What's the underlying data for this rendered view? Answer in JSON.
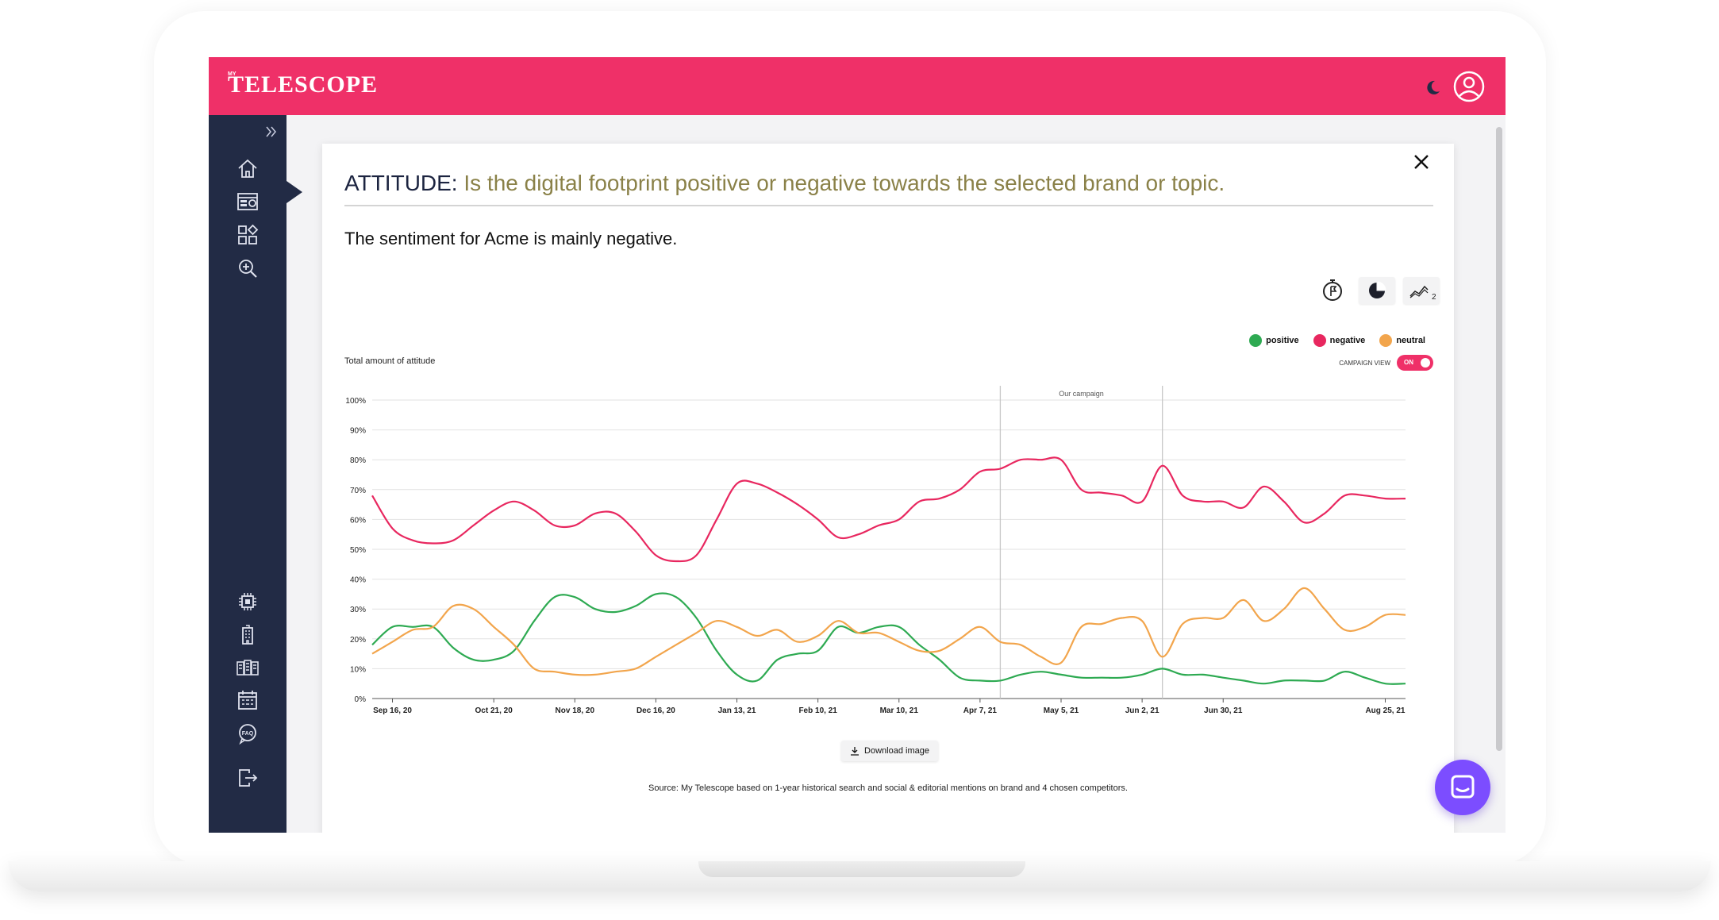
{
  "app": {
    "logo_small": "MY",
    "logo": "TELESCOPE",
    "brand_color": "#ef3068",
    "sidebar_color": "#222b45"
  },
  "sidebar": {
    "top_items": [
      "home-icon",
      "dashboard-icon",
      "widgets-icon",
      "zoom-in-icon"
    ],
    "bottom_items": [
      "chip-icon",
      "building-icon",
      "buildings-icon",
      "calendar-icon",
      "faq-icon",
      "logout-icon"
    ]
  },
  "card": {
    "title_label": "ATTITUDE:",
    "title_description": "Is the digital footprint positive or negative towards the selected brand or topic.",
    "sentiment": "The sentiment for Acme is mainly negative.",
    "toolbar": [
      "timer-flag-icon",
      "pie-chart-icon",
      "compare-series-icon"
    ],
    "campaign_view_label": "CAMPAIGN VIEW",
    "campaign_view_state": "ON",
    "download_label": "Download image",
    "source": "Source: My Telescope based on 1-year historical search and social & editorial mentions on brand and 4 chosen competitors."
  },
  "chart_data": {
    "type": "line",
    "ylabel": "Total amount of attitude",
    "ylim": [
      0,
      100
    ],
    "y_ticks": [
      "100%",
      "90%",
      "80%",
      "70%",
      "60%",
      "50%",
      "40%",
      "30%",
      "20%",
      "10%",
      "0%"
    ],
    "x_labels": [
      "Sep 16, 20",
      "Oct 21, 20",
      "Nov 18, 20",
      "Dec 16, 20",
      "Jan 13, 21",
      "Feb 10, 21",
      "Mar 10, 21",
      "Apr 7, 21",
      "May 5, 21",
      "Jun 2, 21",
      "Jun 30, 21",
      "Aug 25, 21"
    ],
    "x": [
      "Sep 9, 20",
      "Sep 16, 20",
      "Sep 23, 20",
      "Sep 30, 20",
      "Oct 7, 20",
      "Oct 14, 20",
      "Oct 21, 20",
      "Oct 28, 20",
      "Nov 4, 20",
      "Nov 11, 20",
      "Nov 18, 20",
      "Nov 25, 20",
      "Dec 2, 20",
      "Dec 9, 20",
      "Dec 16, 20",
      "Dec 23, 20",
      "Dec 30, 20",
      "Jan 6, 21",
      "Jan 13, 21",
      "Jan 20, 21",
      "Jan 27, 21",
      "Feb 3, 21",
      "Feb 10, 21",
      "Feb 17, 21",
      "Feb 24, 21",
      "Mar 3, 21",
      "Mar 10, 21",
      "Mar 17, 21",
      "Mar 24, 21",
      "Mar 31, 21",
      "Apr 7, 21",
      "Apr 14, 21",
      "Apr 21, 21",
      "Apr 28, 21",
      "May 5, 21",
      "May 12, 21",
      "May 19, 21",
      "May 26, 21",
      "Jun 2, 21",
      "Jun 9, 21",
      "Jun 16, 21",
      "Jun 23, 21",
      "Jun 30, 21",
      "Jul 7, 21",
      "Jul 14, 21",
      "Jul 21, 21",
      "Jul 28, 21",
      "Aug 4, 21",
      "Aug 11, 21",
      "Aug 18, 21",
      "Aug 25, 21",
      "Sep 1, 21"
    ],
    "series": [
      {
        "name": "positive",
        "color": "#2eaa52",
        "values": [
          18,
          24,
          24,
          24,
          17,
          13,
          13,
          16,
          26,
          34,
          34,
          30,
          29,
          31,
          35,
          34,
          27,
          16,
          8,
          6,
          13,
          15,
          16,
          24,
          22,
          24,
          24,
          18,
          13,
          7,
          6,
          6,
          8,
          9,
          8,
          7,
          7,
          7,
          8,
          10,
          8,
          8,
          7,
          6,
          5,
          6,
          6,
          6,
          9,
          7,
          5,
          5
        ]
      },
      {
        "name": "negative",
        "color": "#e8275f",
        "values": [
          68,
          57,
          53,
          52,
          53,
          58,
          63,
          66,
          63,
          58,
          58,
          62,
          62,
          56,
          48,
          46,
          48,
          60,
          72,
          72,
          69,
          65,
          60,
          54,
          55,
          58,
          60,
          66,
          67,
          70,
          76,
          77,
          80,
          80,
          80,
          70,
          69,
          68,
          66,
          78,
          68,
          66,
          66,
          64,
          71,
          66,
          59,
          62,
          68,
          68,
          67,
          67
        ]
      },
      {
        "name": "neutral",
        "color": "#f2a54c",
        "values": [
          15,
          19,
          23,
          24,
          31,
          30,
          24,
          18,
          10,
          9,
          8,
          8,
          9,
          10,
          14,
          18,
          22,
          26,
          24,
          21,
          23,
          19,
          21,
          26,
          22,
          22,
          19,
          16,
          16,
          20,
          24,
          19,
          18,
          14,
          12,
          24,
          25,
          27,
          26,
          14,
          25,
          27,
          27,
          33,
          26,
          30,
          37,
          30,
          23,
          24,
          28,
          28
        ]
      }
    ],
    "campaign": {
      "label": "Our campaign",
      "start": "Apr 14, 21",
      "end": "Jun 9, 21"
    },
    "legend_position": "top-right",
    "grid": true
  }
}
